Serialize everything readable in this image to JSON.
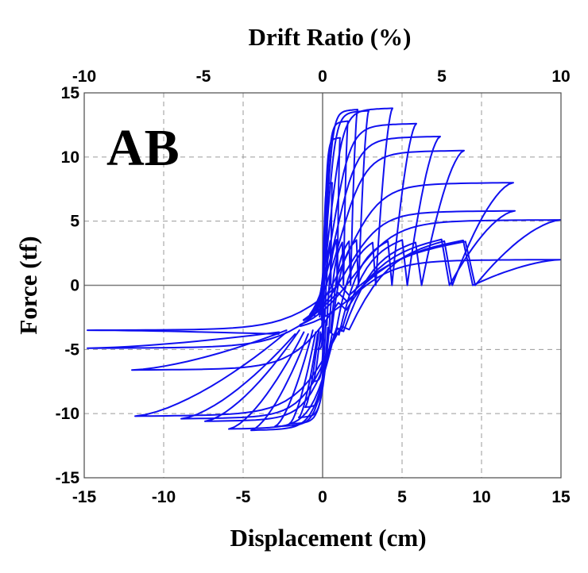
{
  "chart_data": {
    "type": "line",
    "panel_label": "AB",
    "xlabel": "Displacement (cm)",
    "ylabel": "Force (tf)",
    "top_xlabel": "Drift Ratio (%)",
    "xlim": [
      -15,
      15
    ],
    "ylim": [
      -15,
      15
    ],
    "top_xlim": [
      -10,
      10
    ],
    "xticks": [
      -15,
      -10,
      -5,
      0,
      5,
      10,
      15
    ],
    "yticks": [
      -15,
      -10,
      -5,
      0,
      5,
      10,
      15
    ],
    "top_xticks": [
      -10,
      -5,
      0,
      5,
      10
    ],
    "grid": true,
    "line_color": "#1010f0",
    "series": [
      {
        "description_free": true,
        "cycles": [
          {
            "pos_disp": 0.3,
            "pos_peak": 5.0,
            "neg_disp": -0.3,
            "neg_peak": -5.0
          },
          {
            "pos_disp": 0.6,
            "pos_peak": 8.0,
            "neg_disp": -0.6,
            "neg_peak": -7.5
          },
          {
            "pos_disp": 1.1,
            "pos_peak": 11.5,
            "neg_disp": -1.1,
            "neg_peak": -9.5
          },
          {
            "pos_disp": 1.6,
            "pos_peak": 12.8,
            "neg_disp": -1.5,
            "neg_peak": -10.3
          },
          {
            "pos_disp": 2.2,
            "pos_peak": 13.7,
            "neg_disp": -2.1,
            "neg_peak": -10.8
          },
          {
            "pos_disp": 2.9,
            "pos_peak": 13.6,
            "neg_disp": -3.0,
            "neg_peak": -11.0
          },
          {
            "pos_disp": 4.4,
            "pos_peak": 13.8,
            "neg_disp": -4.5,
            "neg_peak": -11.3
          },
          {
            "pos_disp": 5.9,
            "pos_peak": 12.6,
            "neg_disp": -5.9,
            "neg_peak": -11.2
          },
          {
            "pos_disp": 7.4,
            "pos_peak": 11.6,
            "neg_disp": -7.4,
            "neg_peak": -10.6
          },
          {
            "pos_disp": 8.9,
            "pos_peak": 10.5,
            "neg_disp": -8.9,
            "neg_peak": -10.4
          },
          {
            "pos_disp": 12.0,
            "pos_peak": 8.0,
            "neg_disp": -11.8,
            "neg_peak": -10.2
          },
          {
            "pos_disp": 12.1,
            "pos_peak": 5.8,
            "neg_disp": -12.0,
            "neg_peak": -6.6
          },
          {
            "pos_disp": 15.0,
            "pos_peak": 5.1,
            "neg_disp": -14.8,
            "neg_peak": -3.5
          },
          {
            "pos_disp": 15.0,
            "pos_peak": 2.0,
            "neg_disp": -14.8,
            "neg_peak": -4.9
          }
        ]
      }
    ]
  }
}
